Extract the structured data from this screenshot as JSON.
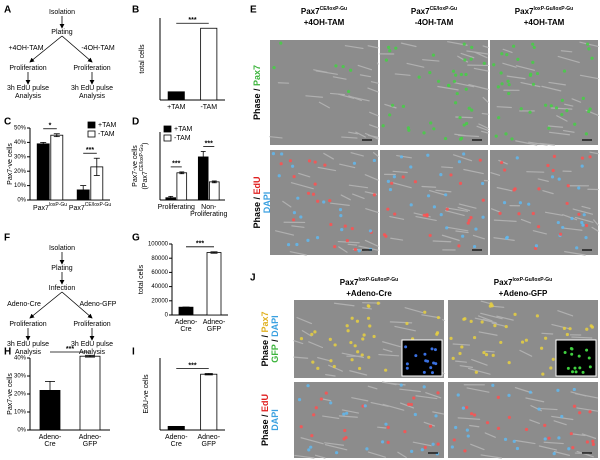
{
  "panels": [
    "A",
    "B",
    "C",
    "D",
    "E",
    "F",
    "G",
    "H",
    "I",
    "J"
  ],
  "diagrams": [
    {
      "nodes": [
        [
          "Isolation"
        ],
        [
          "Plating"
        ],
        [
          "+4OH-TAM"
        ],
        [
          "-4OH-TAM"
        ],
        [
          "Proliferation"
        ],
        [
          "Proliferation"
        ],
        [
          "3h EdU pulse",
          "Analysis"
        ],
        [
          "3h EdU pulse",
          "Analysis"
        ]
      ]
    },
    {
      "nodes": [
        [
          "Isolation"
        ],
        [
          "Plating"
        ],
        [
          "Infection"
        ],
        [
          "Adeno-Cre"
        ],
        [
          "Adeno-GFP"
        ],
        [
          "Proliferation"
        ],
        [
          "Proliferation"
        ],
        [
          "3h EdU pulse",
          "Analysis"
        ],
        [
          "3h EdU pulse",
          "Analysis"
        ]
      ]
    }
  ],
  "chart_data": [
    {
      "type": "bar",
      "ylabel": "total cells",
      "categories": [
        [
          "+TAM"
        ],
        [
          "-TAM"
        ]
      ],
      "values": [
        1200,
        10500
      ],
      "colors": [
        "#000000",
        "#ffffff"
      ],
      "ylim": [
        0,
        12000
      ],
      "annotations": [
        "***"
      ]
    },
    {
      "type": "grouped_bar",
      "ylabel": "Pax7-ve cells",
      "categories": [
        {
          "base": "Pax7",
          "sup": "loxP-Gu"
        },
        {
          "base": "Pax7",
          "sup": "CE/loxP-Gu"
        }
      ],
      "series": [
        {
          "name": "+TAM",
          "color": "#000000",
          "values": [
            39,
            7
          ],
          "errors": [
            1,
            3
          ]
        },
        {
          "name": "-TAM",
          "color": "#ffffff",
          "values": [
            45,
            23
          ],
          "errors": [
            1,
            6
          ]
        }
      ],
      "ylim": [
        0,
        50
      ],
      "yticks": [
        {
          "value": 0,
          "label": "0%"
        },
        {
          "value": 10,
          "label": "10%"
        },
        {
          "value": 20,
          "label": "20%"
        },
        {
          "value": 30,
          "label": "30%"
        },
        {
          "value": 40,
          "label": "40%"
        },
        {
          "value": 50,
          "label": "50%"
        }
      ],
      "annotations": [
        "*",
        "***"
      ],
      "legend": "top-right"
    },
    {
      "type": "grouped_bar",
      "ylabel": "Pax7-ve cells",
      "ylabel2": {
        "base": "(Pax7",
        "sup": "CE/loxP-Gu",
        "end": ")"
      },
      "categories": [
        [
          "Proliferating"
        ],
        [
          "Non-",
          "Proliferating"
        ]
      ],
      "series": [
        {
          "name": "+TAM",
          "color": "#000000",
          "values": [
            5,
            95
          ],
          "errors": [
            3,
            12
          ]
        },
        {
          "name": "-TAM",
          "color": "#ffffff",
          "values": [
            60,
            40
          ],
          "errors": [
            2,
            2
          ]
        }
      ],
      "ylim": [
        0,
        150
      ],
      "annotations": [
        "***",
        "***"
      ],
      "legend": "top-left"
    },
    {
      "type": "bar",
      "ylabel": "total cells",
      "categories": [
        [
          "Adeno-",
          "Cre"
        ],
        [
          "Adneo-",
          "GFP"
        ]
      ],
      "values": [
        11000,
        88000
      ],
      "errors": [
        0,
        1000
      ],
      "colors": [
        "#000000",
        "#ffffff"
      ],
      "ylim": [
        0,
        100000
      ],
      "yticks": [
        0,
        20000,
        40000,
        60000,
        80000,
        100000
      ],
      "annotations": [
        "***"
      ]
    },
    {
      "type": "bar",
      "ylabel": "Pax7-ve cells",
      "categories": [
        [
          "Adeno-",
          "Cre"
        ],
        [
          "Adneo-",
          "GFP"
        ]
      ],
      "values": [
        22,
        41
      ],
      "errors": [
        5,
        0.5
      ],
      "colors": [
        "#000000",
        "#ffffff"
      ],
      "ylim": [
        0,
        40
      ],
      "yticks": [
        {
          "value": 0,
          "label": "0%"
        },
        {
          "value": 10,
          "label": "10%"
        },
        {
          "value": 20,
          "label": "20%"
        },
        {
          "value": 30,
          "label": "30%"
        },
        {
          "value": 40,
          "label": "40%"
        }
      ],
      "annotations": [
        "***"
      ]
    },
    {
      "type": "bar",
      "ylabel": "EdU-ve cells",
      "categories": [
        [
          "Adeno-",
          "Cre"
        ],
        [
          "Adneo-",
          "GFP"
        ]
      ],
      "values": [
        1000,
        15500
      ],
      "errors": [
        0,
        200
      ],
      "colors": [
        "#000000",
        "#ffffff"
      ],
      "ylim": [
        0,
        20000
      ],
      "annotations": [
        "***"
      ]
    }
  ],
  "images": [
    {
      "columns": [
        {
          "base": "Pax7",
          "sup": "CE/loxP-Gu",
          "line2": "+4OH-TAM"
        },
        {
          "base": "Pax7",
          "sup": "CE/loxP-Gu",
          "line2": "-4OH-TAM"
        },
        {
          "base": "Pax7",
          "sup": "loxP-Gu/loxP-Gu",
          "line2": "+4OH-TAM"
        }
      ],
      "rows": [
        [
          [
            {
              "text": "Phase",
              "color": "#000000"
            },
            {
              "text": " / ",
              "color": "#000000"
            },
            {
              "text": "Pax7",
              "color": "#3cb43c"
            }
          ]
        ],
        [
          [
            {
              "text": "Phase",
              "color": "#000000"
            },
            {
              "text": " / ",
              "color": "#000000"
            },
            {
              "text": "EdU",
              "color": "#e02020"
            }
          ],
          [
            {
              "text": "DAPI",
              "color": "#3aa0e0"
            }
          ]
        ]
      ]
    },
    {
      "columns": [
        {
          "base": "Pax7",
          "sup": "loxP-Gu/loxP-Gu",
          "line2": "+Adeno-Cre"
        },
        {
          "base": "Pax7",
          "sup": "loxP-Gu/loxP-Gu",
          "line2": "+Adeno-GFP"
        }
      ],
      "rows": [
        [
          [
            {
              "text": "Phase",
              "color": "#000000"
            },
            {
              "text": " / ",
              "color": "#000000"
            },
            {
              "text": "Pax7",
              "color": "#e0b020"
            }
          ],
          [
            {
              "text": "GFP",
              "color": "#3cb43c"
            },
            {
              "text": " / ",
              "color": "#000000"
            },
            {
              "text": "DAPI",
              "color": "#3aa0e0"
            }
          ]
        ],
        [
          [
            {
              "text": "Phase",
              "color": "#000000"
            },
            {
              "text": " / ",
              "color": "#000000"
            },
            {
              "text": "EdU",
              "color": "#e02020"
            }
          ],
          [
            {
              "text": "DAPI",
              "color": "#3aa0e0"
            }
          ]
        ]
      ]
    }
  ]
}
